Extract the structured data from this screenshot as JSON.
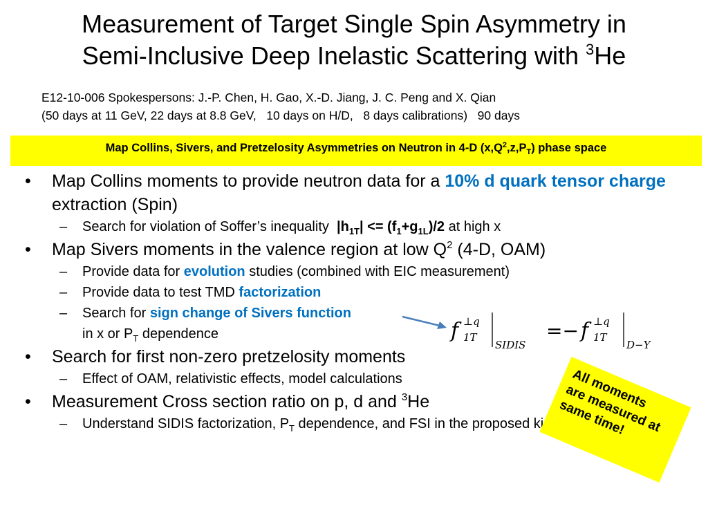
{
  "title": {
    "line1": "Measurement of Target Single Spin Asymmetry in",
    "line2_pre": "Semi-Inclusive Deep Inelastic Scattering with ",
    "line2_sup": "3",
    "line2_post": "He"
  },
  "subinfo": {
    "line1": "E12-10-006 Spokespersons: J.-P. Chen, H. Gao, X.-D. Jiang, J. C. Peng and X. Qian",
    "line2": "(50 days at 11 GeV, 22 days at 8.8 GeV,   10 days on H/D,   8 days calibrations)   90 days"
  },
  "banner": {
    "pre": "Map Collins, Sivers, and Pretzelosity Asymmetries on Neutron in 4-D (x,Q",
    "sup": "2",
    "mid": ",z,P",
    "sub": "T",
    "post": ") phase space"
  },
  "bullets": {
    "collins": {
      "pre": "Map Collins moments to provide neutron data for a ",
      "highlight": "10% d quark tensor charge",
      "post": " extraction (Spin)"
    },
    "soffer": {
      "pre": "Search for violation of Soffer’s inequality  ",
      "h": "|h",
      "h_sub": "1T",
      "mid": "| <= (f",
      "f_sub": "1",
      "plus_g": "+g",
      "g_sub": "1L",
      "end": ")/2",
      "post": " at high x"
    },
    "sivers": {
      "pre": "Map Sivers moments in the valence region at low Q",
      "sup": "2",
      "post": " (4-D, OAM)"
    },
    "evolution": {
      "pre": "Provide data for ",
      "highlight": "evolution",
      "post": " studies (combined with EIC measurement)"
    },
    "tmd": {
      "pre": "Provide data to test TMD ",
      "highlight": "factorization"
    },
    "sign_change": {
      "pre": "Search for ",
      "highlight": "sign change of Sivers function",
      "line2_pre": "in x or P",
      "line2_sub": "T",
      "line2_post": " dependence"
    },
    "pretzelosity": "Search for first non-zero pretzelosity moments",
    "oam": "Effect of OAM, relativistic effects, model calculations",
    "cross_section": {
      "pre": "Measurement Cross section ratio on p, d and ",
      "sup": "3",
      "post": "He"
    },
    "sidis": {
      "pre": "Understand SIDIS factorization, P",
      "sub": "T",
      "post": " dependence, and FSI in the proposed kinematics"
    }
  },
  "formula": {
    "f": "f",
    "sup": "⊥q",
    "sub": "1T",
    "lhs_label": "SIDIS",
    "eq": "=−",
    "rhs_label": "D−Y"
  },
  "note": {
    "line1": "All moments",
    "line2": "are measured at",
    "line3": "same time!"
  },
  "symbols": {
    "bullet": "•",
    "dash": "–"
  },
  "colors": {
    "highlight_blue": "#0070c0",
    "banner_yellow": "#ffff00",
    "arrow": "#4a7ebb"
  }
}
